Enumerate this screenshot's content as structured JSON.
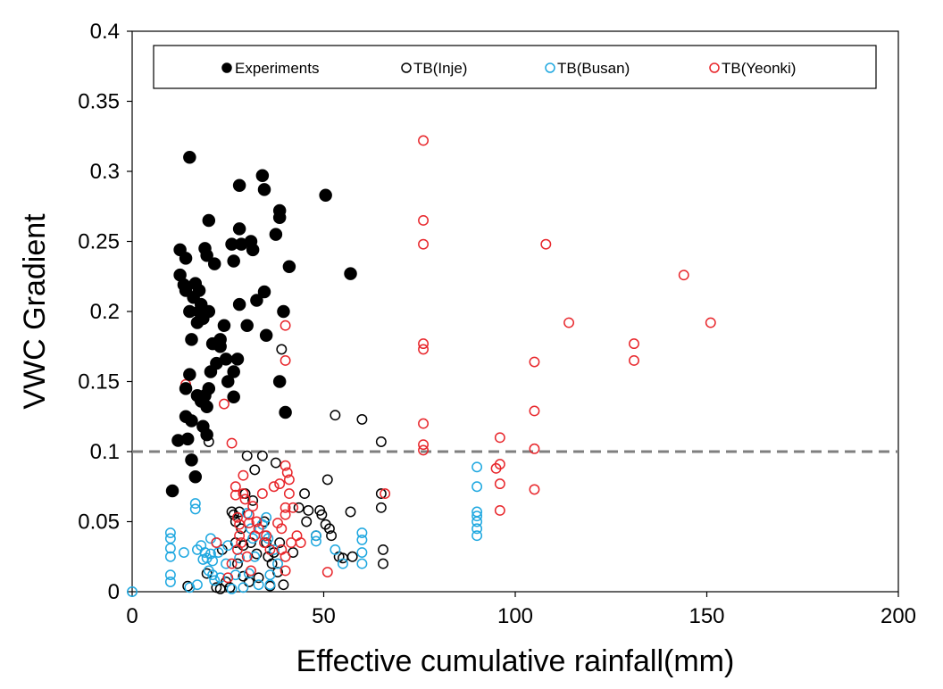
{
  "chart_data": {
    "type": "scatter",
    "xlabel": "Effective cumulative rainfall(mm)",
    "ylabel": "VWC Gradient",
    "xlim": [
      0,
      200
    ],
    "ylim": [
      0,
      0.4
    ],
    "x_ticks": [
      "0",
      "50",
      "100",
      "150",
      "200"
    ],
    "y_ticks": [
      "0",
      "0.05",
      "0.1",
      "0.15",
      "0.2",
      "0.25",
      "0.3",
      "0.35",
      "0.4"
    ],
    "legend_position": "top",
    "threshold_line": {
      "y": 0.1,
      "style": "dashed",
      "color": "#7f7f7f"
    },
    "grid": false,
    "series": [
      {
        "name": "Experiments",
        "color": "#000000",
        "marker": "filled-circle",
        "points": [
          [
            10.5,
            0.072
          ],
          [
            12,
            0.108
          ],
          [
            12.5,
            0.244
          ],
          [
            12.5,
            0.226
          ],
          [
            13.5,
            0.219
          ],
          [
            14,
            0.238
          ],
          [
            14,
            0.215
          ],
          [
            14,
            0.145
          ],
          [
            14,
            0.125
          ],
          [
            14.5,
            0.109
          ],
          [
            15,
            0.31
          ],
          [
            15,
            0.155
          ],
          [
            15,
            0.2
          ],
          [
            15.5,
            0.18
          ],
          [
            15.5,
            0.122
          ],
          [
            15.5,
            0.094
          ],
          [
            16,
            0.21
          ],
          [
            16.5,
            0.22
          ],
          [
            16.5,
            0.082
          ],
          [
            17,
            0.192
          ],
          [
            17,
            0.14
          ],
          [
            17.5,
            0.215
          ],
          [
            17.5,
            0.2
          ],
          [
            18,
            0.205
          ],
          [
            18,
            0.136
          ],
          [
            18.5,
            0.195
          ],
          [
            18.5,
            0.118
          ],
          [
            19,
            0.245
          ],
          [
            19,
            0.14
          ],
          [
            19.5,
            0.24
          ],
          [
            19.5,
            0.132
          ],
          [
            19.5,
            0.112
          ],
          [
            20,
            0.265
          ],
          [
            20,
            0.2
          ],
          [
            20,
            0.145
          ],
          [
            20.5,
            0.157
          ],
          [
            21,
            0.177
          ],
          [
            21.5,
            0.234
          ],
          [
            22,
            0.163
          ],
          [
            23,
            0.18
          ],
          [
            23,
            0.175
          ],
          [
            24,
            0.19
          ],
          [
            24.5,
            0.166
          ],
          [
            25,
            0.15
          ],
          [
            26,
            0.248
          ],
          [
            26.5,
            0.236
          ],
          [
            26.5,
            0.157
          ],
          [
            26.5,
            0.139
          ],
          [
            27.5,
            0.166
          ],
          [
            28,
            0.29
          ],
          [
            28,
            0.259
          ],
          [
            28,
            0.205
          ],
          [
            28.5,
            0.248
          ],
          [
            30,
            0.19
          ],
          [
            31,
            0.25
          ],
          [
            31.5,
            0.244
          ],
          [
            32.5,
            0.208
          ],
          [
            34,
            0.297
          ],
          [
            34.5,
            0.287
          ],
          [
            34.5,
            0.214
          ],
          [
            35,
            0.183
          ],
          [
            37.5,
            0.255
          ],
          [
            38.5,
            0.272
          ],
          [
            38.5,
            0.267
          ],
          [
            38.5,
            0.15
          ],
          [
            39.5,
            0.2
          ],
          [
            40,
            0.128
          ],
          [
            41,
            0.232
          ],
          [
            50.5,
            0.283
          ],
          [
            57,
            0.227
          ]
        ]
      },
      {
        "name": "TB(Inje)",
        "color": "#000000",
        "marker": "open-circle",
        "points": [
          [
            14.5,
            0.004
          ],
          [
            19.5,
            0.013
          ],
          [
            20,
            0.107
          ],
          [
            22,
            0.003
          ],
          [
            23,
            0.002
          ],
          [
            23.5,
            0.03
          ],
          [
            24.5,
            0.007
          ],
          [
            25.5,
            0.003
          ],
          [
            26,
            0.057
          ],
          [
            26.5,
            0.055
          ],
          [
            27,
            0.05
          ],
          [
            27,
            0.035
          ],
          [
            27.5,
            0.02
          ],
          [
            28,
            0.057
          ],
          [
            28.5,
            0.045
          ],
          [
            29,
            0.033
          ],
          [
            29,
            0.011
          ],
          [
            29.5,
            0.07
          ],
          [
            30,
            0.097
          ],
          [
            30.5,
            0.007
          ],
          [
            31,
            0.035
          ],
          [
            31.5,
            0.065
          ],
          [
            32,
            0.087
          ],
          [
            32.5,
            0.027
          ],
          [
            33,
            0.01
          ],
          [
            34,
            0.097
          ],
          [
            34.5,
            0.05
          ],
          [
            35,
            0.035
          ],
          [
            35.5,
            0.025
          ],
          [
            36,
            0.004
          ],
          [
            36.5,
            0.02
          ],
          [
            37,
            0.028
          ],
          [
            37.5,
            0.092
          ],
          [
            38,
            0.014
          ],
          [
            38.5,
            0.035
          ],
          [
            39,
            0.173
          ],
          [
            39.5,
            0.005
          ],
          [
            42,
            0.028
          ],
          [
            43.5,
            0.06
          ],
          [
            45,
            0.07
          ],
          [
            45.5,
            0.05
          ],
          [
            46,
            0.058
          ],
          [
            48,
            0.04
          ],
          [
            49,
            0.058
          ],
          [
            49.5,
            0.055
          ],
          [
            50.5,
            0.048
          ],
          [
            51,
            0.08
          ],
          [
            51.5,
            0.045
          ],
          [
            52,
            0.04
          ],
          [
            53,
            0.126
          ],
          [
            54,
            0.025
          ],
          [
            55,
            0.024
          ],
          [
            57,
            0.057
          ],
          [
            57.5,
            0.025
          ],
          [
            60,
            0.123
          ],
          [
            65,
            0.107
          ],
          [
            65,
            0.07
          ],
          [
            65,
            0.06
          ],
          [
            65.5,
            0.03
          ],
          [
            65.5,
            0.02
          ]
        ]
      },
      {
        "name": "TB(Busan)",
        "color": "#1fa8e0",
        "marker": "open-circle",
        "points": [
          [
            0,
            0
          ],
          [
            10,
            0.042
          ],
          [
            10,
            0.038
          ],
          [
            10,
            0.031
          ],
          [
            10,
            0.025
          ],
          [
            10,
            0.012
          ],
          [
            10,
            0.007
          ],
          [
            13.5,
            0.028
          ],
          [
            15,
            0.003
          ],
          [
            16.5,
            0.063
          ],
          [
            16.5,
            0.059
          ],
          [
            17,
            0.03
          ],
          [
            17,
            0.005
          ],
          [
            18,
            0.033
          ],
          [
            18.5,
            0.023
          ],
          [
            19,
            0.028
          ],
          [
            19.5,
            0.024
          ],
          [
            20,
            0.015
          ],
          [
            20.5,
            0.038
          ],
          [
            20.5,
            0.027
          ],
          [
            21,
            0.022
          ],
          [
            21,
            0.012
          ],
          [
            21.5,
            0.008
          ],
          [
            22,
            0.035
          ],
          [
            22.5,
            0.028
          ],
          [
            23,
            0.01
          ],
          [
            24.5,
            0.02
          ],
          [
            25,
            0.033
          ],
          [
            26,
            0.002
          ],
          [
            27,
            0.012
          ],
          [
            28,
            0.024
          ],
          [
            29,
            0.003
          ],
          [
            30,
            0.056
          ],
          [
            30.5,
            0.013
          ],
          [
            31,
            0.045
          ],
          [
            31.5,
            0.038
          ],
          [
            32,
            0.025
          ],
          [
            33,
            0.005
          ],
          [
            34,
            0.048
          ],
          [
            34.5,
            0.04
          ],
          [
            35,
            0.053
          ],
          [
            35.5,
            0.038
          ],
          [
            36,
            0.012
          ],
          [
            36,
            0.005
          ],
          [
            37,
            0.03
          ],
          [
            38,
            0.02
          ],
          [
            48,
            0.04
          ],
          [
            48,
            0.036
          ],
          [
            53,
            0.03
          ],
          [
            55,
            0.02
          ],
          [
            60,
            0.042
          ],
          [
            60,
            0.037
          ],
          [
            60,
            0.028
          ],
          [
            60,
            0.02
          ],
          [
            90,
            0.089
          ],
          [
            90,
            0.075
          ],
          [
            90,
            0.057
          ],
          [
            90,
            0.054
          ],
          [
            90,
            0.05
          ],
          [
            90,
            0.045
          ],
          [
            90,
            0.04
          ]
        ]
      },
      {
        "name": "TB(Yeonki)",
        "color": "#e8262b",
        "marker": "open-circle",
        "points": [
          [
            14,
            0.148
          ],
          [
            22,
            0.035
          ],
          [
            24,
            0.134
          ],
          [
            25,
            0.01
          ],
          [
            26,
            0.106
          ],
          [
            26,
            0.02
          ],
          [
            27,
            0.075
          ],
          [
            27,
            0.069
          ],
          [
            27.5,
            0.053
          ],
          [
            27.5,
            0.03
          ],
          [
            28,
            0.048
          ],
          [
            28,
            0.04
          ],
          [
            28.5,
            0.035
          ],
          [
            29,
            0.083
          ],
          [
            29,
            0.07
          ],
          [
            29.5,
            0.066
          ],
          [
            30,
            0.025
          ],
          [
            30.5,
            0.055
          ],
          [
            30.5,
            0.049
          ],
          [
            31,
            0.015
          ],
          [
            31.5,
            0.061
          ],
          [
            32,
            0.04
          ],
          [
            32.5,
            0.05
          ],
          [
            33,
            0.045
          ],
          [
            34,
            0.07
          ],
          [
            34.5,
            0.035
          ],
          [
            35,
            0.04
          ],
          [
            36,
            0.03
          ],
          [
            37,
            0.075
          ],
          [
            38,
            0.049
          ],
          [
            38.5,
            0.077
          ],
          [
            39,
            0.045
          ],
          [
            39,
            0.03
          ],
          [
            40,
            0.19
          ],
          [
            40,
            0.165
          ],
          [
            40,
            0.09
          ],
          [
            40,
            0.06
          ],
          [
            40,
            0.055
          ],
          [
            40,
            0.025
          ],
          [
            40,
            0.015
          ],
          [
            40.5,
            0.085
          ],
          [
            41,
            0.08
          ],
          [
            41,
            0.07
          ],
          [
            41.5,
            0.035
          ],
          [
            42,
            0.06
          ],
          [
            43,
            0.04
          ],
          [
            44,
            0.035
          ],
          [
            51,
            0.014
          ],
          [
            66,
            0.07
          ],
          [
            76,
            0.322
          ],
          [
            76,
            0.265
          ],
          [
            76,
            0.248
          ],
          [
            76,
            0.177
          ],
          [
            76,
            0.173
          ],
          [
            76,
            0.12
          ],
          [
            76,
            0.105
          ],
          [
            76,
            0.101
          ],
          [
            95,
            0.088
          ],
          [
            96,
            0.11
          ],
          [
            96,
            0.091
          ],
          [
            96,
            0.077
          ],
          [
            96,
            0.058
          ],
          [
            105,
            0.164
          ],
          [
            105,
            0.129
          ],
          [
            105,
            0.102
          ],
          [
            105,
            0.073
          ],
          [
            108,
            0.248
          ],
          [
            114,
            0.192
          ],
          [
            131,
            0.177
          ],
          [
            131,
            0.165
          ],
          [
            144,
            0.226
          ],
          [
            151,
            0.192
          ]
        ]
      }
    ]
  }
}
